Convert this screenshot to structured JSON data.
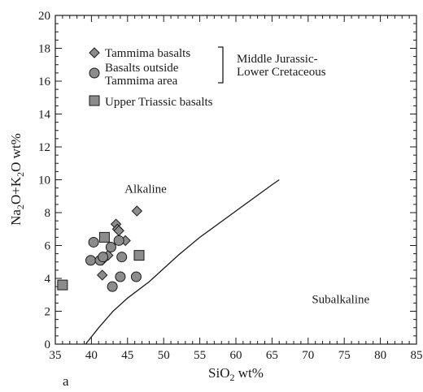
{
  "chart_data": {
    "type": "scatter",
    "panel_label": "a",
    "xlabel": {
      "main": "SiO",
      "sub": "2",
      "rest": " wt%"
    },
    "ylabel": {
      "p1": "Na",
      "s1": "2",
      "p2": "O+K",
      "s2": "2",
      "p3": "O wt%"
    },
    "xlim": [
      35,
      85
    ],
    "ylim": [
      0,
      20
    ],
    "x_ticks": [
      "35",
      "40",
      "45",
      "50",
      "55",
      "60",
      "65",
      "70",
      "75",
      "80",
      "85"
    ],
    "y_ticks": [
      "0",
      "2",
      "4",
      "6",
      "8",
      "10",
      "12",
      "14",
      "16",
      "18",
      "20"
    ],
    "grid": false,
    "legend_position": "top-left",
    "legend": [
      {
        "marker": "diamond",
        "label": "Tammima basalts"
      },
      {
        "marker": "circle",
        "label": "Basalts outside"
      },
      {
        "marker": "",
        "label": "Tammima area"
      },
      {
        "marker": "square",
        "label": "Upper Triassic basalts"
      }
    ],
    "legend_group_label": [
      "Middle Jurassic-",
      "Lower Cretaceous"
    ],
    "region_labels": [
      {
        "text": "Alkaline",
        "x": 47.5,
        "y": 9.2
      },
      {
        "text": "Subalkaline",
        "x": 74.5,
        "y": 2.5
      }
    ],
    "boundary_line": [
      [
        39.2,
        0
      ],
      [
        41,
        1
      ],
      [
        43,
        2
      ],
      [
        45,
        2.8
      ],
      [
        48,
        3.8
      ],
      [
        50,
        4.6
      ],
      [
        52,
        5.4
      ],
      [
        55,
        6.5
      ],
      [
        60,
        8.1
      ],
      [
        65,
        9.7
      ],
      [
        66,
        10
      ]
    ],
    "series": [
      {
        "marker": "diamond",
        "points": [
          [
            41.5,
            5.1
          ],
          [
            41.5,
            4.2
          ],
          [
            42.3,
            5.4
          ],
          [
            43.4,
            7.3
          ],
          [
            43.6,
            7.0
          ],
          [
            43.8,
            6.9
          ],
          [
            44.7,
            6.3
          ],
          [
            46.3,
            8.1
          ]
        ]
      },
      {
        "marker": "circle",
        "points": [
          [
            39.9,
            5.1
          ],
          [
            40.3,
            6.2
          ],
          [
            41.2,
            5.1
          ],
          [
            41.6,
            5.3
          ],
          [
            42.7,
            5.9
          ],
          [
            42.9,
            3.5
          ],
          [
            43.8,
            6.3
          ],
          [
            44.2,
            5.3
          ],
          [
            44.0,
            4.1
          ],
          [
            46.2,
            4.1
          ]
        ]
      },
      {
        "marker": "square",
        "points": [
          [
            36.0,
            3.6
          ],
          [
            41.8,
            6.5
          ],
          [
            46.6,
            5.4
          ]
        ]
      }
    ]
  }
}
